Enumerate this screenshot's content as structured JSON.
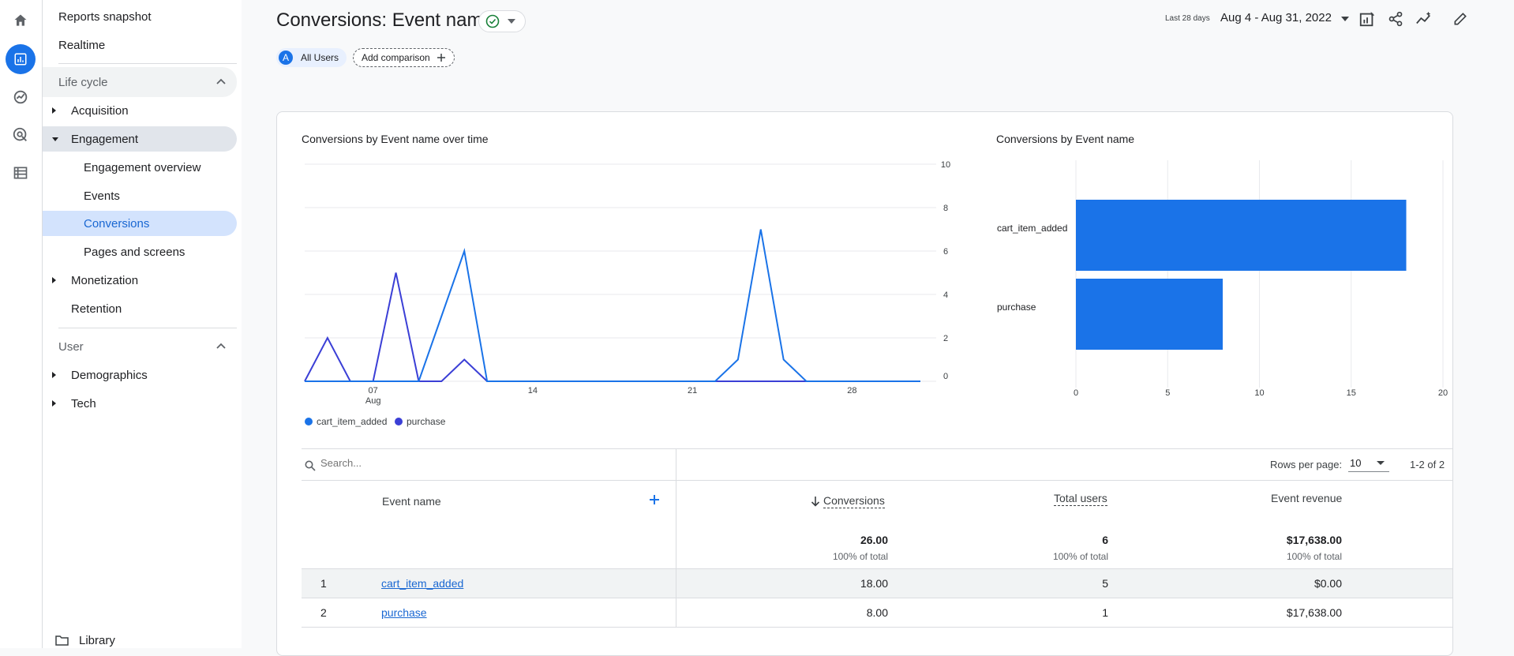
{
  "sidebar": {
    "top_items": [
      "Reports snapshot",
      "Realtime"
    ],
    "lifecycle_label": "Life cycle",
    "acquisition": "Acquisition",
    "engagement": "Engagement",
    "engagement_children": [
      "Engagement overview",
      "Events",
      "Conversions",
      "Pages and screens"
    ],
    "monetization": "Monetization",
    "retention": "Retention",
    "user_label": "User",
    "demographics": "Demographics",
    "tech": "Tech",
    "library": "Library"
  },
  "header": {
    "title": "Conversions: Event name",
    "date_label": "Last 28 days",
    "date_range": "Aug 4 - Aug 31, 2022"
  },
  "filters": {
    "all_users_letter": "A",
    "all_users": "All Users",
    "add_comparison": "Add comparison"
  },
  "line_chart": {
    "title": "Conversions by Event name over time",
    "x_ticks": [
      {
        "day": 7,
        "label": "07",
        "sub": "Aug"
      },
      {
        "day": 14,
        "label": "14",
        "sub": ""
      },
      {
        "day": 21,
        "label": "21",
        "sub": ""
      },
      {
        "day": 28,
        "label": "28",
        "sub": ""
      }
    ],
    "y_ticks": [
      0,
      2,
      4,
      6,
      8,
      10
    ],
    "ylim": [
      0,
      10
    ],
    "x_range": [
      4,
      31
    ],
    "series": [
      {
        "name": "cart_item_added",
        "color": "#1a73e8",
        "days": [
          4,
          5,
          6,
          7,
          8,
          9,
          10,
          11,
          12,
          13,
          14,
          15,
          16,
          17,
          18,
          19,
          20,
          21,
          22,
          23,
          24,
          25,
          26,
          27,
          28,
          29,
          30,
          31
        ],
        "values": [
          0,
          0,
          0,
          0,
          0,
          0,
          3,
          6,
          0,
          0,
          0,
          0,
          0,
          0,
          0,
          0,
          0,
          0,
          0,
          1,
          7,
          1,
          0,
          0,
          0,
          0,
          0,
          0
        ]
      },
      {
        "name": "purchase",
        "color": "#3b3fd6",
        "days": [
          4,
          5,
          6,
          7,
          8,
          9,
          10,
          11,
          12,
          13,
          14,
          15,
          16,
          17,
          18,
          19,
          20,
          21,
          22,
          23,
          24,
          25,
          26,
          27,
          28,
          29,
          30,
          31
        ],
        "values": [
          0,
          2,
          0,
          0,
          5,
          0,
          0,
          1,
          0,
          0,
          0,
          0,
          0,
          0,
          0,
          0,
          0,
          0,
          0,
          0,
          0,
          0,
          0,
          0,
          0,
          0,
          0,
          0
        ]
      }
    ]
  },
  "bar_chart": {
    "title": "Conversions by Event name",
    "type": "bar",
    "categories": [
      "cart_item_added",
      "purchase"
    ],
    "values": [
      18,
      8
    ],
    "x_ticks": [
      0,
      5,
      10,
      15,
      20
    ],
    "xlim": [
      0,
      20
    ],
    "color": "#1a73e8"
  },
  "table": {
    "search_placeholder": "Search...",
    "rows_per_page_label": "Rows per page:",
    "rows_per_page": "10",
    "range": "1-2 of 2",
    "headers": {
      "event_name": "Event name",
      "conversions": "Conversions",
      "total_users": "Total users",
      "event_revenue": "Event revenue"
    },
    "totals": {
      "conversions": "26.00",
      "total_users": "6",
      "event_revenue": "$17,638.00",
      "pct": "100% of total"
    },
    "rows": [
      {
        "index": "1",
        "name": "cart_item_added",
        "conversions": "18.00",
        "users": "5",
        "revenue": "$0.00"
      },
      {
        "index": "2",
        "name": "purchase",
        "conversions": "8.00",
        "users": "1",
        "revenue": "$17,638.00"
      }
    ]
  }
}
